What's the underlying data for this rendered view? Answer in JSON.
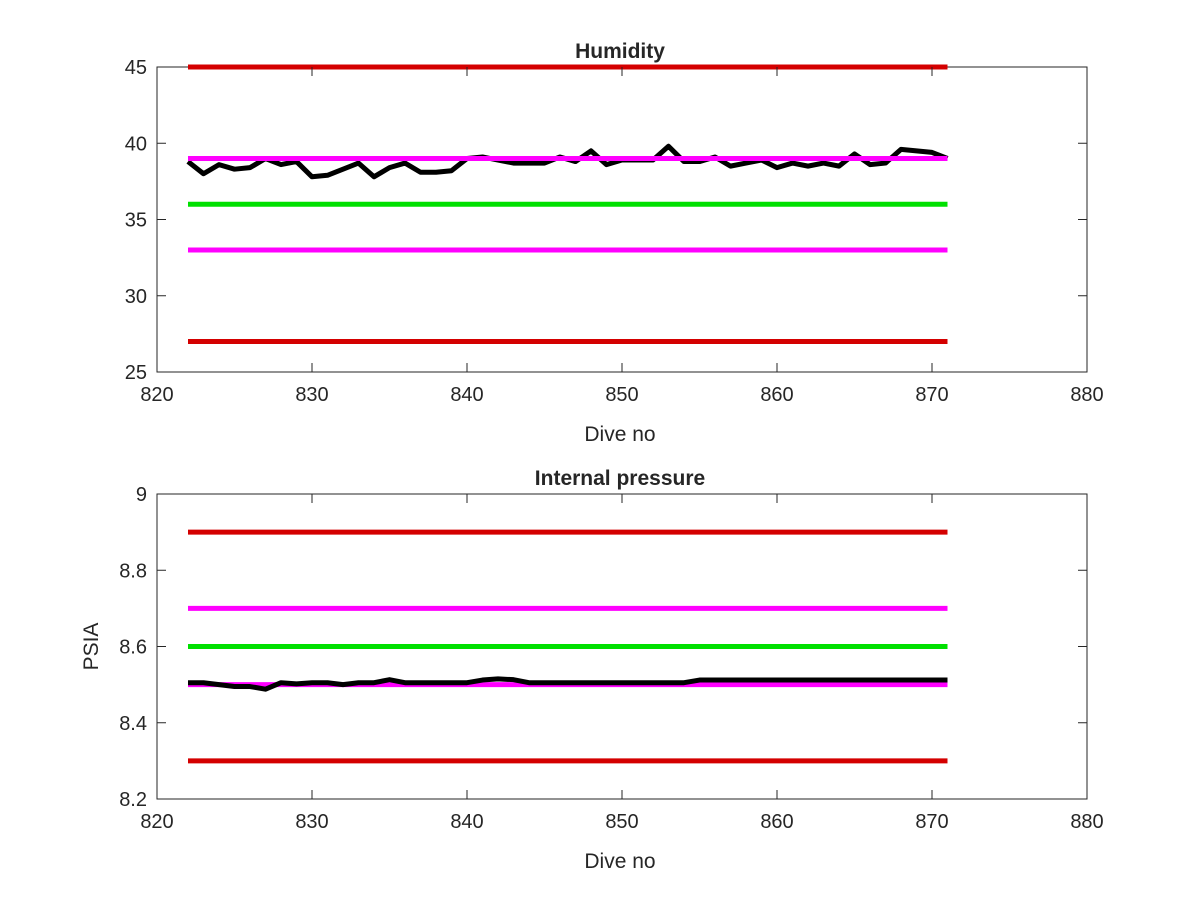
{
  "chart_data": [
    {
      "type": "line",
      "title": "Humidity",
      "xlabel": "Dive no",
      "ylabel": "",
      "xlim": [
        820,
        880
      ],
      "ylim": [
        25,
        45
      ],
      "xticks": [
        "820",
        "830",
        "840",
        "850",
        "860",
        "870",
        "880"
      ],
      "yticks": [
        "25",
        "30",
        "35",
        "40",
        "45"
      ],
      "grid": false,
      "series": [
        {
          "role": "measured",
          "color": "#000000",
          "x": [
            822,
            823,
            824,
            825,
            826,
            827,
            828,
            829,
            830,
            831,
            832,
            833,
            834,
            835,
            836,
            837,
            838,
            839,
            840,
            841,
            842,
            843,
            844,
            845,
            846,
            847,
            848,
            849,
            850,
            851,
            852,
            853,
            854,
            855,
            856,
            857,
            858,
            859,
            860,
            861,
            862,
            863,
            864,
            865,
            866,
            867,
            868,
            869,
            870,
            871
          ],
          "values": [
            38.8,
            38.0,
            38.6,
            38.3,
            38.4,
            39.0,
            38.6,
            38.8,
            37.8,
            37.9,
            38.3,
            38.7,
            37.8,
            38.4,
            38.7,
            38.1,
            38.1,
            38.2,
            39.0,
            39.1,
            38.9,
            38.7,
            38.7,
            38.7,
            39.1,
            38.8,
            39.5,
            38.6,
            38.9,
            38.9,
            38.9,
            39.8,
            38.8,
            38.8,
            39.1,
            38.5,
            38.7,
            38.9,
            38.4,
            38.7,
            38.5,
            38.7,
            38.5,
            39.3,
            38.6,
            38.7,
            39.6,
            39.5,
            39.4,
            39.0
          ]
        },
        {
          "role": "upper-limit",
          "color": "#d40000",
          "x": [
            822,
            871
          ],
          "values": [
            45,
            45
          ]
        },
        {
          "role": "upper-warning",
          "color": "#ff00ff",
          "x": [
            822,
            871
          ],
          "values": [
            39,
            39
          ]
        },
        {
          "role": "nominal",
          "color": "#00e000",
          "x": [
            822,
            871
          ],
          "values": [
            36,
            36
          ]
        },
        {
          "role": "lower-warning",
          "color": "#ff00ff",
          "x": [
            822,
            871
          ],
          "values": [
            33,
            33
          ]
        },
        {
          "role": "lower-limit",
          "color": "#d40000",
          "x": [
            822,
            871
          ],
          "values": [
            27,
            27
          ]
        }
      ]
    },
    {
      "type": "line",
      "title": "Internal pressure",
      "xlabel": "Dive no",
      "ylabel": "PSIA",
      "xlim": [
        820,
        880
      ],
      "ylim": [
        8.2,
        9.0
      ],
      "xticks": [
        "820",
        "830",
        "840",
        "850",
        "860",
        "870",
        "880"
      ],
      "yticks": [
        "8.2",
        "8.4",
        "8.6",
        "8.8",
        "9"
      ],
      "grid": false,
      "series": [
        {
          "role": "measured",
          "color": "#000000",
          "x": [
            822,
            823,
            824,
            825,
            826,
            827,
            828,
            829,
            830,
            831,
            832,
            833,
            834,
            835,
            836,
            837,
            838,
            839,
            840,
            841,
            842,
            843,
            844,
            845,
            846,
            847,
            848,
            849,
            850,
            851,
            852,
            853,
            854,
            855,
            856,
            857,
            858,
            859,
            860,
            861,
            862,
            863,
            864,
            865,
            866,
            867,
            868,
            869,
            870,
            871
          ],
          "values": [
            8.505,
            8.505,
            8.5,
            8.495,
            8.495,
            8.488,
            8.505,
            8.502,
            8.505,
            8.505,
            8.5,
            8.505,
            8.505,
            8.513,
            8.505,
            8.505,
            8.505,
            8.505,
            8.505,
            8.512,
            8.515,
            8.513,
            8.505,
            8.505,
            8.505,
            8.505,
            8.505,
            8.505,
            8.505,
            8.505,
            8.505,
            8.505,
            8.505,
            8.512,
            8.512,
            8.512,
            8.512,
            8.512,
            8.512,
            8.512,
            8.512,
            8.512,
            8.512,
            8.512,
            8.512,
            8.512,
            8.512,
            8.512,
            8.512,
            8.512
          ]
        },
        {
          "role": "upper-limit",
          "color": "#d40000",
          "x": [
            822,
            871
          ],
          "values": [
            8.9,
            8.9
          ]
        },
        {
          "role": "upper-warning",
          "color": "#ff00ff",
          "x": [
            822,
            871
          ],
          "values": [
            8.7,
            8.7
          ]
        },
        {
          "role": "nominal",
          "color": "#00e000",
          "x": [
            822,
            871
          ],
          "values": [
            8.6,
            8.6
          ]
        },
        {
          "role": "lower-warning",
          "color": "#ff00ff",
          "x": [
            822,
            871
          ],
          "values": [
            8.5,
            8.5
          ]
        },
        {
          "role": "lower-limit",
          "color": "#d40000",
          "x": [
            822,
            871
          ],
          "values": [
            8.3,
            8.3
          ]
        }
      ]
    }
  ]
}
